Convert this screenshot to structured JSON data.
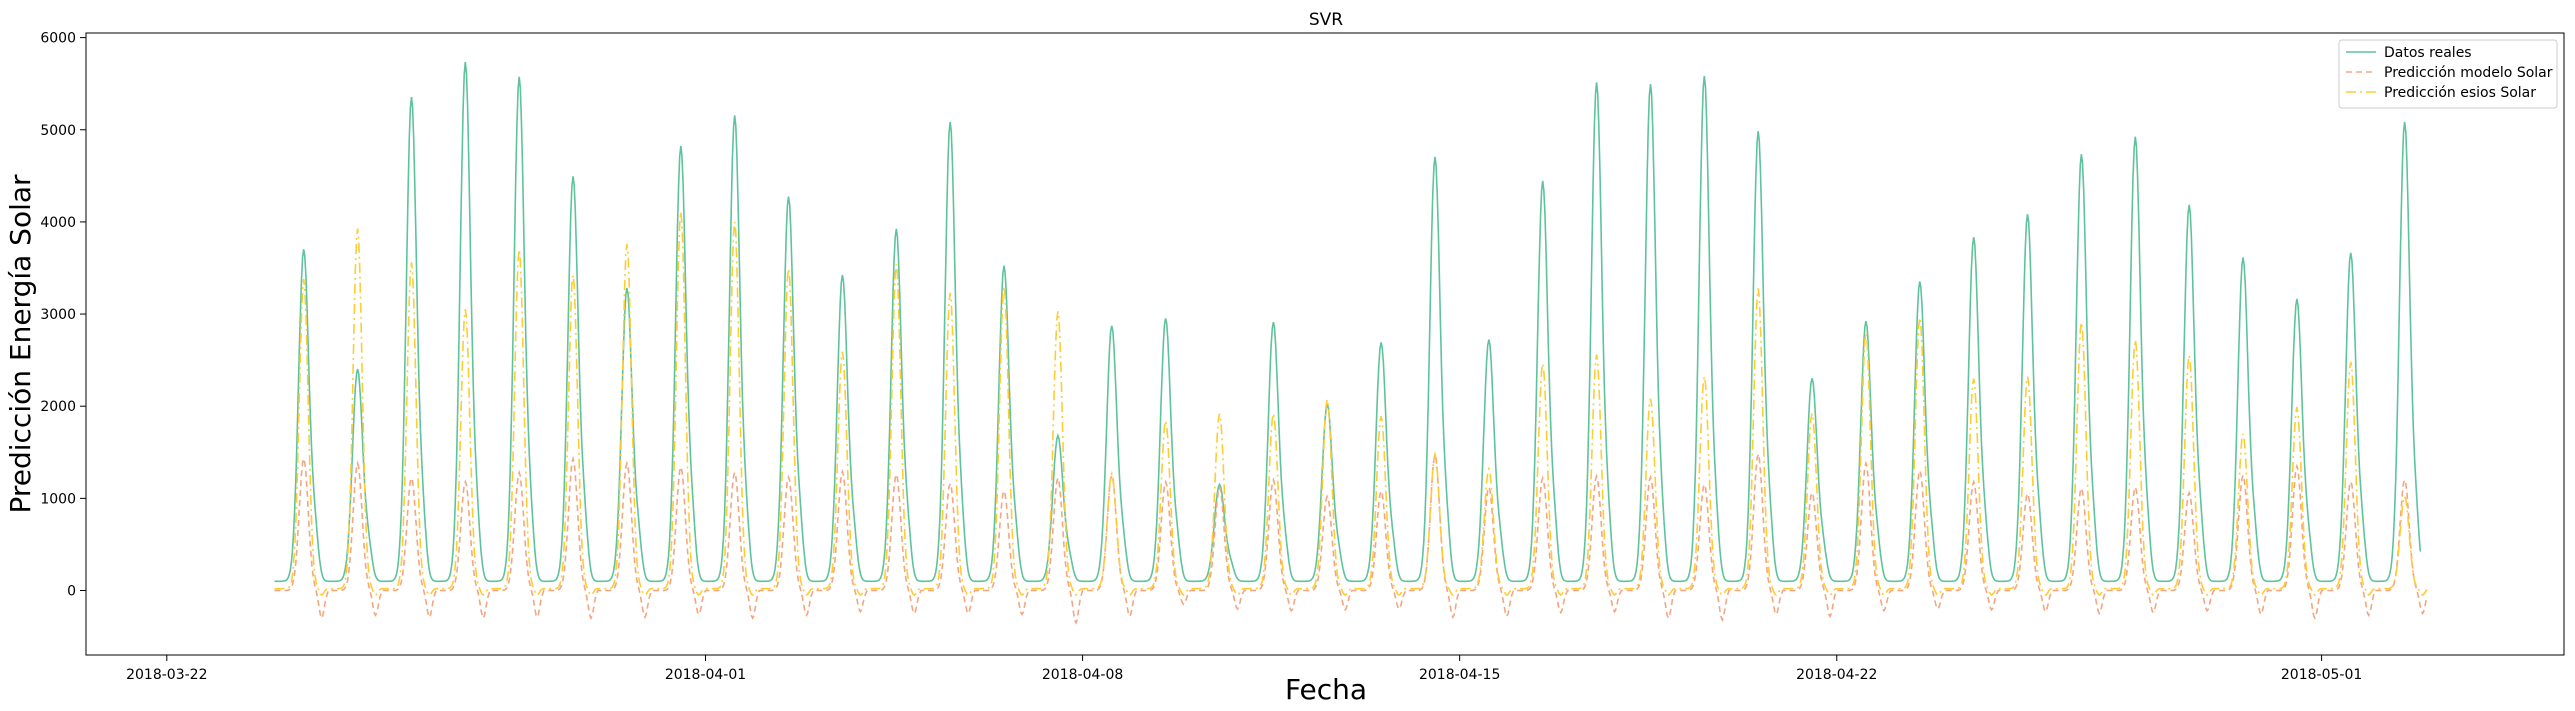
{
  "chart_data": {
    "type": "line",
    "title": "SVR",
    "xlabel": "Fecha",
    "ylabel": "Predicción Energía Solar",
    "xlim": [
      "2018-03-20T12:00",
      "2018-05-05T12:00"
    ],
    "ylim": [
      -700,
      6050
    ],
    "yticks": [
      0,
      1000,
      2000,
      3000,
      4000,
      5000,
      6000
    ],
    "xticks": [
      "2018-03-22",
      "2018-04-01",
      "2018-04-08",
      "2018-04-15",
      "2018-04-22",
      "2018-05-01"
    ],
    "grid": false,
    "legend_position": "top-right",
    "series": [
      {
        "name": "Datos reales",
        "color": "#5ec39c",
        "dash": "solid",
        "night": 100,
        "x": [
          "2018-03-24",
          "2018-03-25",
          "2018-03-26",
          "2018-03-27",
          "2018-03-28",
          "2018-03-29",
          "2018-03-30",
          "2018-03-31",
          "2018-04-01",
          "2018-04-02",
          "2018-04-03",
          "2018-04-04",
          "2018-04-05",
          "2018-04-06",
          "2018-04-07",
          "2018-04-08",
          "2018-04-09",
          "2018-04-10",
          "2018-04-11",
          "2018-04-12",
          "2018-04-13",
          "2018-04-14",
          "2018-04-15",
          "2018-04-16",
          "2018-04-17",
          "2018-04-18",
          "2018-04-19",
          "2018-04-20",
          "2018-04-21",
          "2018-04-22",
          "2018-04-23",
          "2018-04-24",
          "2018-04-25",
          "2018-04-26",
          "2018-04-27",
          "2018-04-28",
          "2018-04-29",
          "2018-04-30",
          "2018-05-01",
          "2018-05-02"
        ],
        "values": [
          3700,
          2400,
          5350,
          5730,
          5570,
          4490,
          3280,
          4820,
          5150,
          4270,
          3420,
          3920,
          5080,
          3520,
          1680,
          2870,
          2950,
          1150,
          2910,
          2020,
          2690,
          4700,
          2720,
          4440,
          5510,
          5490,
          5580,
          4980,
          2300,
          2920,
          3350,
          3830,
          4080,
          4730,
          4920,
          4180,
          3610,
          3160,
          3660,
          5080
        ]
      },
      {
        "name": "Predicción modelo Solar",
        "color": "#f4a582",
        "dash": "6,4",
        "night": 0,
        "x": [
          "2018-03-24",
          "2018-03-25",
          "2018-03-26",
          "2018-03-27",
          "2018-03-28",
          "2018-03-29",
          "2018-03-30",
          "2018-03-31",
          "2018-04-01",
          "2018-04-02",
          "2018-04-03",
          "2018-04-04",
          "2018-04-05",
          "2018-04-06",
          "2018-04-07",
          "2018-04-08",
          "2018-04-09",
          "2018-04-10",
          "2018-04-11",
          "2018-04-12",
          "2018-04-13",
          "2018-04-14",
          "2018-04-15",
          "2018-04-16",
          "2018-04-17",
          "2018-04-18",
          "2018-04-19",
          "2018-04-20",
          "2018-04-21",
          "2018-04-22",
          "2018-04-23",
          "2018-04-24",
          "2018-04-25",
          "2018-04-26",
          "2018-04-27",
          "2018-04-28",
          "2018-04-29",
          "2018-04-30",
          "2018-05-01",
          "2018-05-02"
        ],
        "values": [
          1430,
          1380,
          1220,
          1180,
          1280,
          1430,
          1380,
          1340,
          1280,
          1230,
          1290,
          1260,
          1160,
          1080,
          1220,
          1250,
          1180,
          1120,
          1200,
          1020,
          1080,
          1470,
          1120,
          1220,
          1240,
          1230,
          1150,
          1480,
          1060,
          1380,
          1300,
          1180,
          1050,
          1110,
          1120,
          1060,
          1250,
          1350,
          1180,
          1200
        ],
        "minima": [
          -300,
          -270,
          -290,
          -300,
          -290,
          -300,
          -290,
          -260,
          -300,
          -270,
          -230,
          -250,
          -250,
          -260,
          -350,
          -280,
          -150,
          -200,
          -220,
          -210,
          -200,
          -290,
          -280,
          -240,
          -230,
          -300,
          -320,
          -260,
          -280,
          -220,
          -200,
          -210,
          -230,
          -250,
          -240,
          -220,
          -260,
          -300,
          -270,
          -250
        ]
      },
      {
        "name": "Predicción esios Solar",
        "color": "#ffcc33",
        "dash": "10,4,2,4",
        "night": 20,
        "x": [
          "2018-03-24",
          "2018-03-25",
          "2018-03-26",
          "2018-03-27",
          "2018-03-28",
          "2018-03-29",
          "2018-03-30",
          "2018-03-31",
          "2018-04-01",
          "2018-04-02",
          "2018-04-03",
          "2018-04-04",
          "2018-04-05",
          "2018-04-06",
          "2018-04-07",
          "2018-04-08",
          "2018-04-09",
          "2018-04-10",
          "2018-04-11",
          "2018-04-12",
          "2018-04-13",
          "2018-04-14",
          "2018-04-15",
          "2018-04-16",
          "2018-04-17",
          "2018-04-18",
          "2018-04-19",
          "2018-04-20",
          "2018-04-21",
          "2018-04-22",
          "2018-04-23",
          "2018-04-24",
          "2018-04-25",
          "2018-04-26",
          "2018-04-27",
          "2018-04-28",
          "2018-04-29",
          "2018-04-30",
          "2018-05-01",
          "2018-05-02"
        ],
        "values": [
          3380,
          3930,
          3560,
          3050,
          3700,
          3420,
          3760,
          4110,
          4000,
          3490,
          2590,
          3540,
          3230,
          3300,
          3030,
          1270,
          1840,
          1920,
          1920,
          2070,
          1890,
          1480,
          1320,
          2460,
          2560,
          2080,
          2320,
          3280,
          1920,
          2790,
          2960,
          2300,
          2320,
          2910,
          2720,
          2550,
          1700,
          1990,
          2480,
          1020
        ]
      }
    ]
  }
}
